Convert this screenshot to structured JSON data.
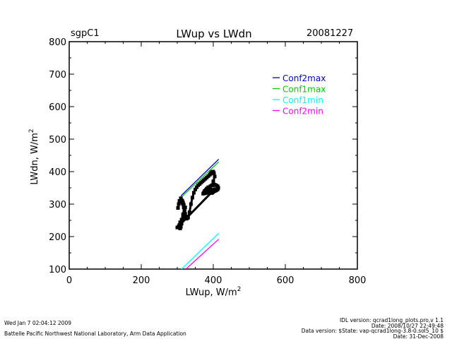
{
  "header": {
    "site": "sgpC1",
    "title": "LWup vs LWdn",
    "date": "20081227"
  },
  "footer": {
    "timestamp": "Wed Jan  7 02:04:12 2009",
    "lab": "Battelle Pacific Northwest National Laboratory, Arm Data Application",
    "idl_version": "IDL version: qcrad1long_plots.pro,v 1.1",
    "idl_date": "Date: 2008/10/27 22:49:48",
    "data_version": "Data version: $State: vap-qcrad1long-3.8-0.sol5_10 $",
    "data_date": "Date: 31-Dec-2008"
  },
  "chart_data": {
    "type": "scatter",
    "title": "LWup vs LWdn",
    "xlabel_main": "LWup, W/m",
    "xlabel_sup": "2",
    "ylabel_main": "LWdn, W/m",
    "ylabel_sup": "2",
    "xlim": [
      0,
      800
    ],
    "ylim": [
      100,
      800
    ],
    "xticks": [
      0,
      200,
      400,
      600,
      800
    ],
    "yticks": [
      100,
      200,
      300,
      400,
      500,
      600,
      700,
      800
    ],
    "grid": false,
    "legend_position": "top-right",
    "series": [
      {
        "name": "Conf2max",
        "color": "#0000cc",
        "kind": "line",
        "x": [
          310,
          415
        ],
        "y": [
          325,
          438
        ]
      },
      {
        "name": "Conf1max",
        "color": "#00cc00",
        "kind": "line",
        "x": [
          310,
          415
        ],
        "y": [
          320,
          430
        ]
      },
      {
        "name": "Conf1min",
        "color": "#00ffff",
        "kind": "line",
        "x": [
          310,
          415
        ],
        "y": [
          98,
          210
        ]
      },
      {
        "name": "Conf2min",
        "color": "#ff00ff",
        "kind": "line",
        "x": [
          322,
          415
        ],
        "y": [
          98,
          192
        ]
      },
      {
        "name": "",
        "color": "#000000",
        "kind": "points",
        "x": [
          308,
          310,
          312,
          314,
          316,
          318,
          320,
          322,
          318,
          316,
          314,
          316,
          318,
          320,
          322,
          324,
          326,
          330,
          334,
          338,
          342,
          346,
          350,
          354,
          358,
          362,
          366,
          370,
          374,
          378,
          382,
          386,
          390,
          392,
          394,
          396,
          398,
          400,
          402,
          404,
          400,
          396,
          392,
          388,
          384,
          380,
          378,
          382,
          386,
          392,
          398,
          404,
          408,
          412,
          414,
          412,
          408,
          404,
          400,
          398,
          396,
          392,
          388,
          384,
          380,
          376,
          374,
          372,
          376,
          380,
          384,
          388,
          392,
          396,
          400,
          404,
          300,
          304,
          306,
          308,
          312,
          316,
          320,
          318,
          314,
          312,
          310,
          306,
          304,
          302
        ],
        "y": [
          225,
          230,
          240,
          250,
          260,
          270,
          280,
          290,
          298,
          305,
          310,
          300,
          290,
          280,
          270,
          262,
          255,
          258,
          275,
          300,
          320,
          335,
          345,
          352,
          358,
          362,
          366,
          370,
          374,
          378,
          382,
          386,
          390,
          393,
          396,
          398,
          400,
          400,
          395,
          385,
          370,
          358,
          350,
          345,
          340,
          338,
          342,
          348,
          352,
          355,
          358,
          360,
          358,
          355,
          350,
          345,
          342,
          340,
          338,
          336,
          334,
          335,
          338,
          342,
          344,
          340,
          336,
          332,
          333,
          334,
          336,
          338,
          340,
          342,
          344,
          346,
          228,
          232,
          236,
          244,
          252,
          268,
          284,
          296,
          304,
          312,
          318,
          310,
          300,
          288
        ]
      }
    ]
  }
}
